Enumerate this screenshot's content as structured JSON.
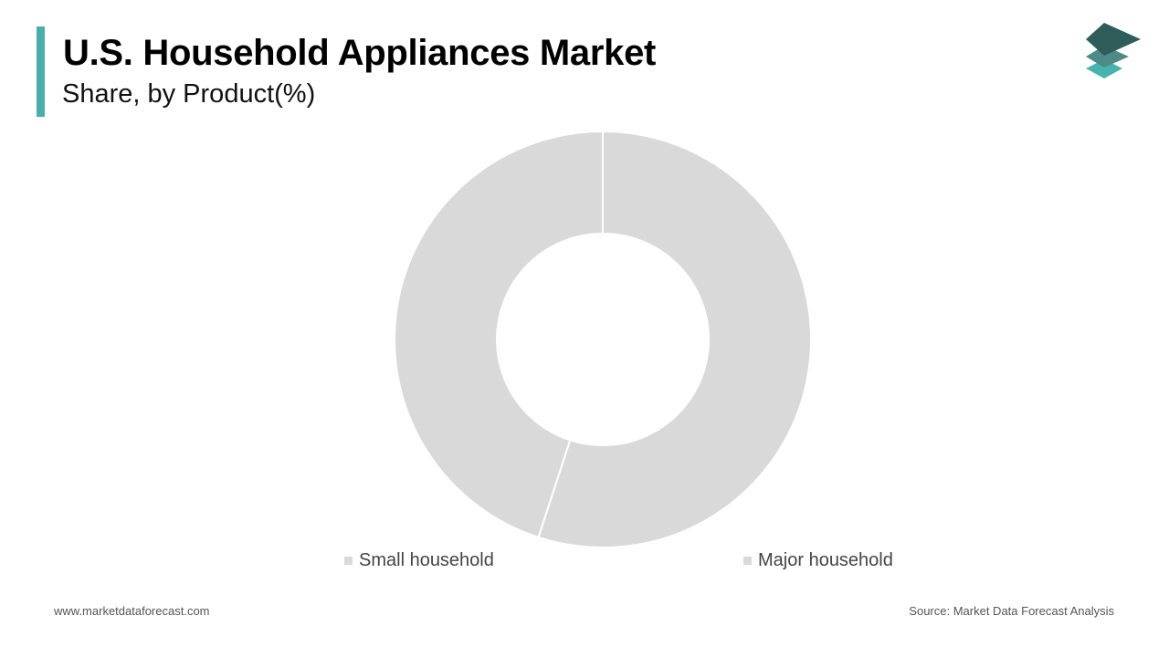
{
  "header": {
    "title": "U.S. Household Appliances Market",
    "subtitle": "Share, by Product(%)"
  },
  "logo": {
    "icon": "stacked-layers-logo-icon",
    "colors": [
      "#2f5d5a",
      "#4e8a86",
      "#48b3ad"
    ]
  },
  "colors": {
    "accent": "#4aaeaa",
    "slice": "#d9d9d9",
    "slice_border": "#ffffff"
  },
  "chart_data": {
    "type": "pie",
    "variant": "donut",
    "categories": [
      "Major household",
      "Small household"
    ],
    "values": [
      55,
      45
    ],
    "unit": "%",
    "start_angle_deg": 0,
    "direction": "clockwise",
    "legend": {
      "placement": "bottom",
      "entries": [
        "Small household",
        "Major household"
      ]
    }
  },
  "footer": {
    "website": "www.marketdataforecast.com",
    "source": "Source: Market Data Forecast Analysis"
  }
}
